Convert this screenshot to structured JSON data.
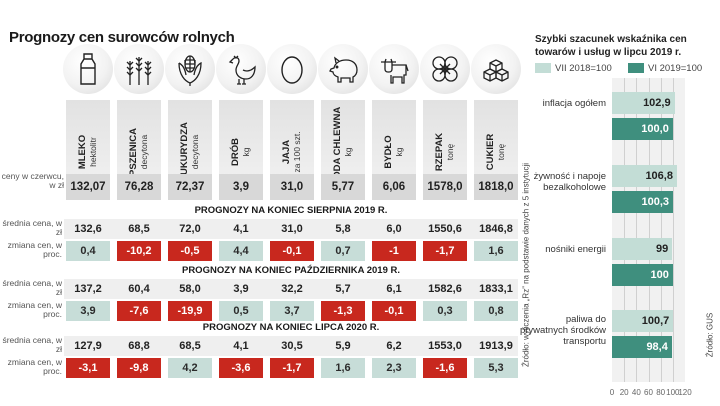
{
  "title": "Prognozy cen surowców rolnych",
  "row_labels": {
    "june": "ceny w czerwcu, w zł",
    "avg": "średnia cena, w zł",
    "change": "zmiana cen, w proc."
  },
  "commodities": [
    {
      "name": "MLEKO",
      "unit": "hektolitr",
      "icon": "milk-bottle-icon",
      "june": "132,07"
    },
    {
      "name": "PSZENICA",
      "unit": "decytona",
      "icon": "wheat-icon",
      "june": "76,28"
    },
    {
      "name": "KUKURYDZA",
      "unit": "decytona",
      "icon": "corn-icon",
      "june": "72,37"
    },
    {
      "name": "DRÓB",
      "unit": "kg",
      "icon": "chicken-icon",
      "june": "3,9"
    },
    {
      "name": "JAJA",
      "unit": "za 100 szt.",
      "icon": "egg-icon",
      "june": "31,0"
    },
    {
      "name": "TRZODA CHLEWNA",
      "unit": "kg",
      "icon": "pig-icon",
      "june": "5,77"
    },
    {
      "name": "BYDŁO",
      "unit": "kg",
      "icon": "cow-icon",
      "june": "6,06"
    },
    {
      "name": "RZEPAK",
      "unit": "tonę",
      "icon": "rapeseed-flower-icon",
      "june": "1578,0"
    },
    {
      "name": "CUKIER",
      "unit": "tonę",
      "icon": "sugar-cubes-icon",
      "june": "1818,0"
    }
  ],
  "forecasts": [
    {
      "heading": "PROGNOZY NA KONIEC SIERPNIA 2019 R.",
      "avg": [
        "132,6",
        "68,5",
        "72,0",
        "4,1",
        "31,0",
        "5,8",
        "6,0",
        "1550,6",
        "1846,8"
      ],
      "change": [
        "0,4",
        "-10,2",
        "-0,5",
        "4,4",
        "-0,1",
        "0,7",
        "-1",
        "-1,7",
        "1,6"
      ]
    },
    {
      "heading": "PROGNOZY NA KONIEC PAŹDZIERNIKA 2019 R.",
      "avg": [
        "137,2",
        "60,4",
        "58,0",
        "3,9",
        "32,2",
        "5,7",
        "6,1",
        "1582,6",
        "1833,1"
      ],
      "change": [
        "3,9",
        "-7,6",
        "-19,9",
        "0,5",
        "3,7",
        "-1,3",
        "-0,1",
        "0,3",
        "0,8"
      ]
    },
    {
      "heading": "PROGNOZY NA KONIEC LIPCA 2020 R.",
      "avg": [
        "127,9",
        "68,8",
        "68,5",
        "4,1",
        "30,5",
        "5,9",
        "6,2",
        "1553,0",
        "1913,9"
      ],
      "change": [
        "-3,1",
        "-9,8",
        "4,2",
        "-3,6",
        "-1,7",
        "1,6",
        "2,3",
        "-1,6",
        "5,3"
      ]
    }
  ],
  "source_left": "Źródło: wyliczenia „Rz” na podstawie danych z 5 instytucji",
  "colors": {
    "positive": "#c7ddd8",
    "negative": "#c8281e",
    "series_2018": "#c3ddd6",
    "series_2019": "#3f8f7e"
  },
  "chart_data": {
    "type": "bar",
    "orientation": "horizontal",
    "title": "Szybki szacunek wskaźnika cen towarów i usług w lipcu 2019 r.",
    "categories": [
      "inflacja ogółem",
      "żywność i napoje bezalkoholowe",
      "nośniki energii",
      "paliwa do prywatnych środków transportu"
    ],
    "series": [
      {
        "name": "VII 2018=100",
        "values": [
          102.9,
          106.8,
          99,
          100.7
        ],
        "labels": [
          "102,9",
          "106,8",
          "99",
          "100,7"
        ]
      },
      {
        "name": "VI 2019=100",
        "values": [
          100.0,
          100.3,
          100,
          98.4
        ],
        "labels": [
          "100,0",
          "100,3",
          "100",
          "98,4"
        ]
      }
    ],
    "xlim": [
      0,
      120
    ],
    "xticks": [
      "0",
      "20",
      "40",
      "60",
      "80",
      "100",
      "120"
    ],
    "grid": true,
    "legend": "top",
    "source": "Źródło: GUS"
  }
}
